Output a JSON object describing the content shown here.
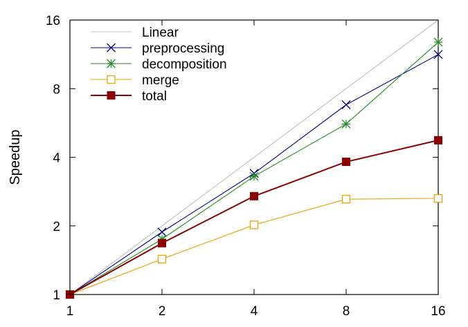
{
  "chart_data": {
    "type": "line",
    "xlabel": "",
    "ylabel": "Speedup",
    "x": [
      1,
      2,
      4,
      8,
      16
    ],
    "xlim": [
      1,
      16
    ],
    "ylim": [
      1,
      16
    ],
    "x_scale": "log2",
    "y_scale": "log2",
    "x_ticks": [
      "1",
      "2",
      "4",
      "8",
      "16"
    ],
    "y_ticks": [
      "1",
      "2",
      "4",
      "8",
      "16"
    ],
    "grid": false,
    "legend_position": "top-left",
    "series": [
      {
        "name": "Linear",
        "values": [
          1,
          2,
          4,
          8,
          16
        ],
        "color": "#c0c0c0",
        "marker": "none"
      },
      {
        "name": "preprocessing",
        "values": [
          1,
          1.88,
          3.4,
          6.8,
          11.3
        ],
        "color": "#00008b",
        "marker": "x"
      },
      {
        "name": "decomposition",
        "values": [
          1,
          1.75,
          3.3,
          5.6,
          12.8
        ],
        "color": "#228b22",
        "marker": "star"
      },
      {
        "name": "merge",
        "values": [
          1,
          1.43,
          2.02,
          2.62,
          2.64
        ],
        "color": "#f0a000",
        "marker": "open-square"
      },
      {
        "name": "total",
        "values": [
          1,
          1.68,
          2.7,
          3.82,
          4.75
        ],
        "color": "#8b0000",
        "marker": "filled-square"
      }
    ]
  }
}
